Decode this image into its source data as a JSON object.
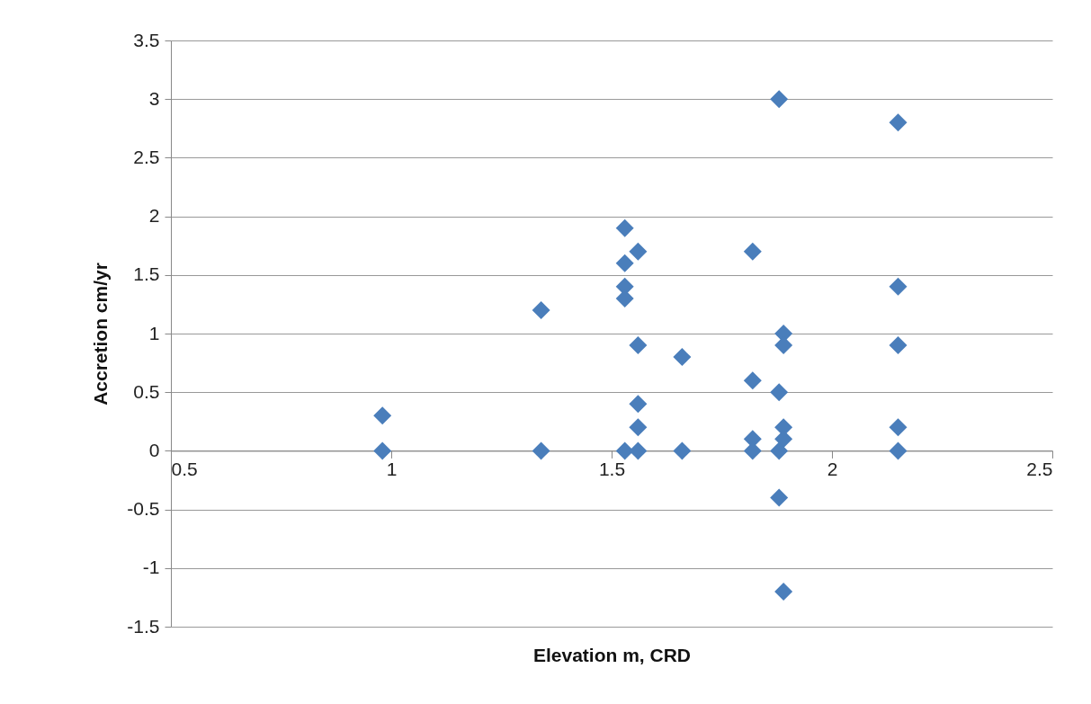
{
  "chart_data": {
    "type": "scatter",
    "xlabel": "Elevation m, CRD",
    "ylabel": "Accretion cm/yr",
    "x": [
      0.98,
      0.98,
      1.34,
      1.34,
      1.53,
      1.56,
      1.53,
      1.53,
      1.53,
      1.56,
      1.66,
      1.56,
      1.56,
      1.53,
      1.56,
      1.66,
      1.88,
      2.15,
      1.82,
      2.15,
      1.89,
      1.89,
      2.15,
      1.82,
      1.88,
      1.89,
      1.89,
      2.15,
      1.82,
      1.82,
      1.88,
      2.15,
      1.88,
      1.89
    ],
    "values": [
      0.3,
      0,
      1.2,
      0,
      1.9,
      1.7,
      1.6,
      1.4,
      1.3,
      0.9,
      0.8,
      0.4,
      0.2,
      0,
      0,
      0,
      3.0,
      2.8,
      1.7,
      1.4,
      1.0,
      0.9,
      0.9,
      0.6,
      0.5,
      0.2,
      0.1,
      0.2,
      0.1,
      0,
      0,
      0,
      -0.4,
      -1.2
    ],
    "color": "#4a7ebb",
    "marker": "diamond",
    "xlim": [
      0.5,
      2.5
    ],
    "xticks": [
      0.5,
      1,
      1.5,
      2,
      2.5
    ],
    "ylim": [
      -1.5,
      3.5
    ],
    "yticks": [
      -1.5,
      -1,
      -0.5,
      0,
      0.5,
      1,
      1.5,
      2,
      2.5,
      3,
      3.5
    ],
    "grid": "y"
  }
}
